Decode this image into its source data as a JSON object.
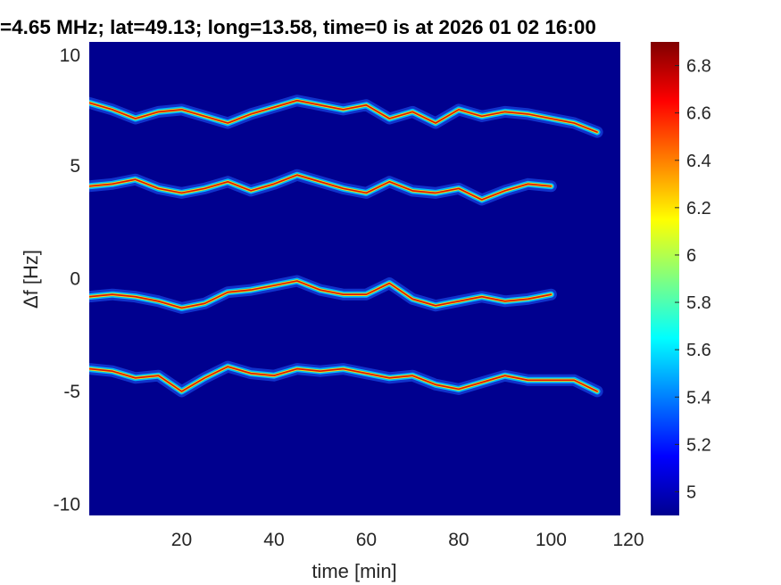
{
  "chart_data": {
    "type": "heatmap",
    "title": "=4.65 MHz;  lat=49.13; long=13.58, time=0 is at 2026 01 02 16:00",
    "xlabel": "time [min]",
    "ylabel": "Δf [Hz]",
    "xlim": [
      0,
      115
    ],
    "ylim": [
      -10.5,
      10.5
    ],
    "x_ticks": [
      20,
      40,
      60,
      80,
      100,
      120
    ],
    "x_tick_labels": [
      "20",
      "40",
      "60",
      "80",
      "100",
      "120"
    ],
    "y_ticks": [
      -10,
      -5,
      0,
      5,
      10
    ],
    "y_tick_labels": [
      "-10",
      "-5",
      "0",
      "5",
      "10"
    ],
    "colormap": "jet",
    "background_color": "#00008f",
    "colorbar": {
      "range": [
        4.9,
        6.9
      ],
      "ticks": [
        5,
        5.2,
        5.4,
        5.6,
        5.8,
        6,
        6.2,
        6.4,
        6.6,
        6.8
      ],
      "tick_labels": [
        "5",
        "5.2",
        "5.4",
        "5.6",
        "5.8",
        "6",
        "6.2",
        "6.4",
        "6.6",
        "6.8"
      ]
    },
    "traces": [
      {
        "t": [
          0,
          5,
          10,
          15,
          20,
          25,
          30,
          35,
          40,
          45,
          50,
          55,
          60,
          65,
          70,
          75,
          80,
          85,
          90,
          95,
          100,
          105,
          110
        ],
        "df": [
          7.8,
          7.5,
          7.1,
          7.4,
          7.5,
          7.2,
          6.9,
          7.3,
          7.6,
          7.9,
          7.7,
          7.5,
          7.7,
          7.1,
          7.4,
          6.9,
          7.5,
          7.2,
          7.4,
          7.3,
          7.1,
          6.9,
          6.5
        ]
      },
      {
        "t": [
          0,
          5,
          10,
          15,
          20,
          25,
          30,
          35,
          40,
          45,
          50,
          55,
          60,
          65,
          70,
          75,
          80,
          85,
          90,
          95,
          100
        ],
        "df": [
          4.1,
          4.2,
          4.4,
          4.0,
          3.8,
          4.0,
          4.3,
          3.9,
          4.2,
          4.6,
          4.3,
          4.0,
          3.8,
          4.3,
          3.9,
          3.8,
          4.0,
          3.5,
          3.9,
          4.2,
          4.1
        ]
      },
      {
        "t": [
          0,
          5,
          10,
          15,
          20,
          25,
          30,
          35,
          40,
          45,
          50,
          55,
          60,
          65,
          70,
          75,
          80,
          85,
          90,
          95,
          100
        ],
        "df": [
          -0.8,
          -0.7,
          -0.8,
          -1.0,
          -1.3,
          -1.1,
          -0.6,
          -0.5,
          -0.3,
          -0.1,
          -0.5,
          -0.7,
          -0.7,
          -0.2,
          -0.9,
          -1.2,
          -1.0,
          -0.8,
          -1.0,
          -0.9,
          -0.7
        ]
      },
      {
        "t": [
          0,
          5,
          10,
          15,
          20,
          25,
          30,
          35,
          40,
          45,
          50,
          55,
          60,
          65,
          70,
          75,
          80,
          85,
          90,
          95,
          100,
          105,
          110
        ],
        "df": [
          -4.0,
          -4.1,
          -4.4,
          -4.3,
          -5.0,
          -4.4,
          -3.9,
          -4.2,
          -4.3,
          -4.0,
          -4.1,
          -4.0,
          -4.2,
          -4.4,
          -4.3,
          -4.7,
          -4.9,
          -4.6,
          -4.3,
          -4.5,
          -4.5,
          -4.5,
          -5.0
        ]
      }
    ]
  }
}
